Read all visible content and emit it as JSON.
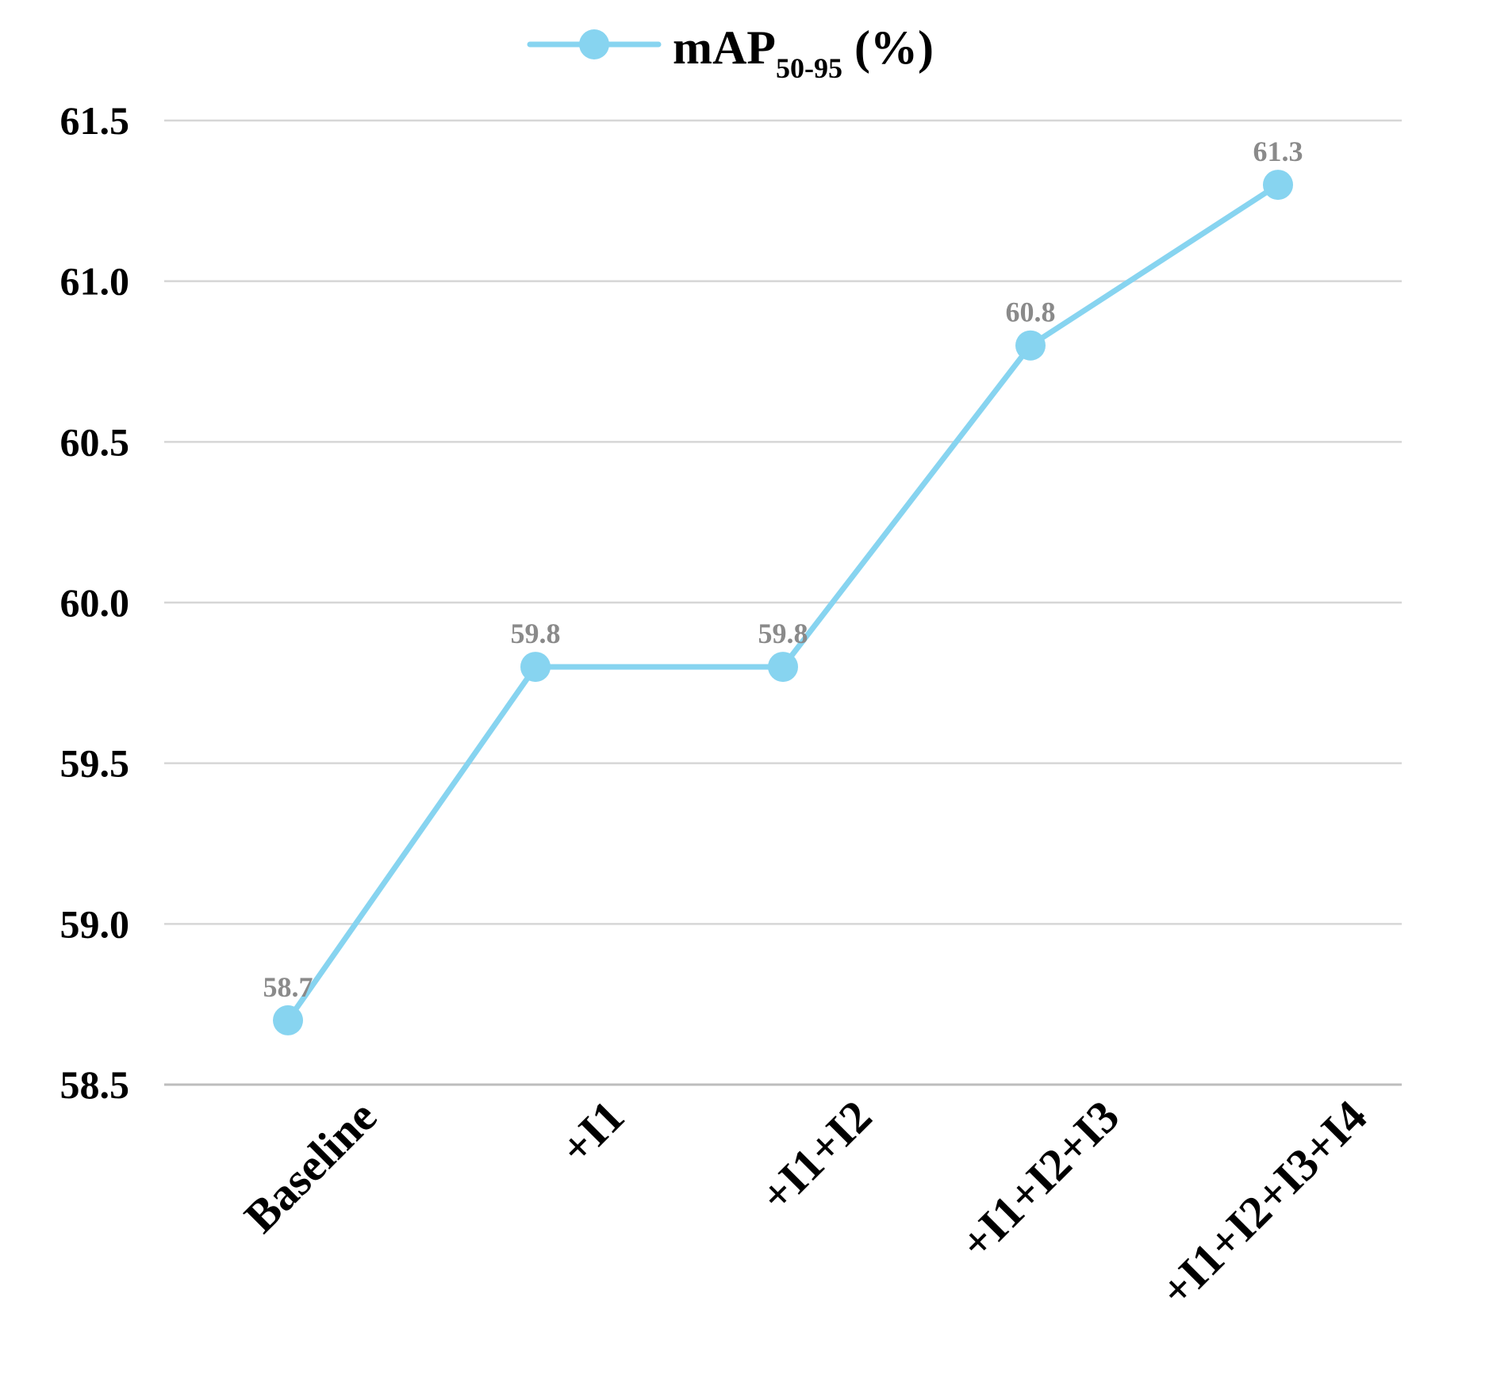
{
  "chart_data": {
    "type": "line",
    "title": "",
    "xlabel": "",
    "ylabel": "",
    "categories": [
      "Baseline",
      "+I1",
      "+I1+I2",
      "+I1+I2+I3",
      "+I1+I2+I3+I4"
    ],
    "series": [
      {
        "name_main": "mAP",
        "name_sub": "50-95",
        "name_suffix": " (%)",
        "values": [
          58.7,
          59.8,
          59.8,
          60.8,
          61.3
        ],
        "labels": [
          "58.7",
          "59.8",
          "59.8",
          "60.8",
          "61.3"
        ],
        "color": "#87d4f0"
      }
    ],
    "ylim": [
      58.5,
      61.5
    ],
    "yticks": [
      58.5,
      59.0,
      59.5,
      60.0,
      60.5,
      61.0,
      61.5
    ],
    "ytick_labels": [
      "58.5",
      "59.0",
      "59.5",
      "60.0",
      "60.5",
      "61.0",
      "61.5"
    ],
    "grid": true,
    "legend_position": "top-center",
    "label_color": "#8a8a8a"
  }
}
